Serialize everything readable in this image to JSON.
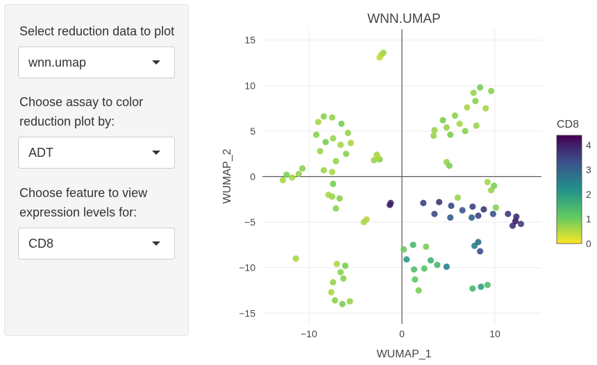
{
  "sidebar": {
    "reduction": {
      "label": "Select reduction data to plot",
      "selected": "wnn.umap"
    },
    "assay": {
      "label": "Choose assay to color reduction plot by:",
      "selected": "ADT"
    },
    "feature": {
      "label": "Choose feature to view expression levels for:",
      "selected": "CD8"
    }
  },
  "chart_data": {
    "type": "scatter",
    "title": "WNN.UMAP",
    "xlabel": "WUMAP_1",
    "ylabel": "WUMAP_2",
    "xlim": [
      -15,
      15
    ],
    "ylim": [
      -16.2,
      16.2
    ],
    "xticks": [
      -10,
      0,
      10
    ],
    "xtick_labels": [
      "−10",
      "0",
      "10"
    ],
    "yticks": [
      15,
      10,
      5,
      0,
      -5,
      -10,
      -15
    ],
    "ytick_labels": [
      "15",
      "10",
      "5",
      "0",
      "−5",
      "−10",
      "−15"
    ],
    "grid": true,
    "colorbar": {
      "title": "CD8",
      "ticks": [
        4,
        3,
        2,
        1,
        0
      ],
      "range": [
        0,
        4.4
      ],
      "colorscale": "viridis",
      "colors": [
        "#fde725",
        "#5ec962",
        "#21918c",
        "#3b528b",
        "#440154"
      ]
    },
    "clusters": [
      {
        "points": [
          [
            -11.8,
            -0.1
          ],
          [
            -12.4,
            0.2
          ],
          [
            -11.1,
            0.3
          ],
          [
            -10.7,
            0.9
          ],
          [
            -12.8,
            -0.4
          ]
        ],
        "cd8": [
          0.6,
          0.9,
          0.7,
          0.8,
          0.6
        ]
      },
      {
        "points": [
          [
            -9,
            6
          ],
          [
            -8.4,
            6.6
          ],
          [
            -7.5,
            6.5
          ],
          [
            -6.5,
            5.8
          ],
          [
            -5.8,
            4.8
          ],
          [
            -5.5,
            3.7
          ],
          [
            -6,
            2.5
          ],
          [
            -7.1,
            1.7
          ],
          [
            -7.5,
            0.5
          ],
          [
            -7.4,
            -0.8
          ],
          [
            -7.5,
            -2.2
          ],
          [
            -7.1,
            -3.5
          ],
          [
            -7.9,
            -2
          ],
          [
            -8.8,
            2.8
          ],
          [
            -9.2,
            4.6
          ],
          [
            -8.2,
            3.8
          ],
          [
            -7.4,
            4.2
          ],
          [
            -6.6,
            3.5
          ],
          [
            -6.7,
            -2.4
          ],
          [
            -8.4,
            0.7
          ]
        ],
        "cd8": [
          0.6,
          0.8,
          0.7,
          0.9,
          0.7,
          0.6,
          0.8,
          0.7,
          0.6,
          0.9,
          0.7,
          0.8,
          0.6,
          0.7,
          0.8,
          0.9,
          0.7,
          0.6,
          0.8,
          0.7
        ]
      },
      {
        "points": [
          [
            -2.7,
            2.4
          ],
          [
            -2.4,
            1.9
          ],
          [
            -3,
            1.8
          ],
          [
            -2.6,
            2.1
          ]
        ],
        "cd8": [
          0.6,
          0.9,
          0.7,
          0.5
        ]
      },
      {
        "points": [
          [
            -2.2,
            13.4
          ],
          [
            -2,
            13.6
          ],
          [
            -2.4,
            13.1
          ]
        ],
        "cd8": [
          0.5,
          0.6,
          0.4
        ]
      },
      {
        "points": [
          [
            3.5,
            5.1
          ],
          [
            4.4,
            6.2
          ],
          [
            5.7,
            6.7
          ],
          [
            7,
            7.6
          ],
          [
            7.7,
            9.2
          ],
          [
            8.4,
            9.8
          ],
          [
            9.6,
            9.4
          ],
          [
            9,
            7.5
          ],
          [
            8,
            5.6
          ],
          [
            6.8,
            5
          ],
          [
            5.2,
            4.6
          ],
          [
            3.4,
            4.5
          ],
          [
            6.2,
            5.8
          ],
          [
            7.9,
            8.3
          ],
          [
            4.8,
            5.4
          ]
        ],
        "cd8": [
          0.7,
          0.9,
          0.8,
          0.6,
          0.7,
          0.9,
          0.8,
          0.6,
          0.7,
          0.8,
          0.9,
          0.7,
          0.6,
          0.8,
          0.7
        ]
      },
      {
        "points": [
          [
            4.8,
            1.6
          ],
          [
            5.1,
            1.2
          ]
        ],
        "cd8": [
          0.7,
          0.9
        ]
      },
      {
        "points": [
          [
            2.3,
            -2.9
          ],
          [
            4,
            -2.8
          ],
          [
            5.3,
            -3.2
          ],
          [
            6.5,
            -3.7
          ],
          [
            7.6,
            -3.3
          ],
          [
            8.8,
            -3.6
          ],
          [
            9.8,
            -4.1
          ],
          [
            3.5,
            -4.1
          ],
          [
            5.2,
            -4.5
          ],
          [
            7.5,
            -4.5
          ],
          [
            8.2,
            -4.3
          ]
        ],
        "cd8": [
          3.5,
          3.7,
          3.4,
          3.2,
          3.5,
          3.6,
          3.3,
          3.4,
          3.1,
          3,
          3.5
        ]
      },
      {
        "points": [
          [
            11.4,
            -4.1
          ],
          [
            12.3,
            -4.4
          ],
          [
            12.8,
            -5.2
          ],
          [
            11.9,
            -5.4
          ],
          [
            12.2,
            -4.9
          ]
        ],
        "cd8": [
          3.6,
          3.8,
          3.5,
          3.7,
          4
        ]
      },
      {
        "points": [
          [
            9.6,
            -1.5
          ],
          [
            9.9,
            -1
          ],
          [
            9.2,
            -0.6
          ]
        ],
        "cd8": [
          0.7,
          0.9,
          0.6
        ]
      },
      {
        "points": [
          [
            0.2,
            -8
          ],
          [
            1.2,
            -7.5
          ],
          [
            2.6,
            -7.7
          ],
          [
            3.1,
            -9.2
          ],
          [
            2.4,
            -10.1
          ],
          [
            1.3,
            -10.2
          ],
          [
            0.5,
            -9.1
          ],
          [
            1.4,
            -11.3
          ],
          [
            1.8,
            -12.5
          ],
          [
            3.8,
            -9.7
          ],
          [
            4.8,
            -9.9
          ]
        ],
        "cd8": [
          1,
          1.4,
          0.9,
          1.6,
          1.2,
          1.3,
          2,
          1.1,
          0.9,
          1.5,
          2.5
        ]
      },
      {
        "points": [
          [
            7.8,
            -7.6
          ],
          [
            8.4,
            -8.2
          ],
          [
            8.2,
            -7.2
          ]
        ],
        "cd8": [
          2.5,
          3.3,
          2.8
        ]
      },
      {
        "points": [
          [
            7.6,
            -12.3
          ],
          [
            8.5,
            -12.1
          ],
          [
            9.2,
            -11.9
          ]
        ],
        "cd8": [
          1.5,
          1.9,
          1.3
        ]
      },
      {
        "points": [
          [
            -7,
            -9.6
          ],
          [
            -6.1,
            -9.8
          ],
          [
            -6.6,
            -10.5
          ],
          [
            -7.4,
            -11.6
          ],
          [
            -7.6,
            -12.7
          ],
          [
            -7.2,
            -13.6
          ],
          [
            -6.4,
            -14
          ],
          [
            -5.6,
            -13.7
          ],
          [
            -6.3,
            -11.2
          ]
        ],
        "cd8": [
          0.6,
          0.9,
          0.8,
          0.7,
          0.6,
          0.8,
          0.9,
          0.7,
          0.8
        ]
      },
      {
        "points": [
          [
            -11.4,
            -9
          ],
          [
            -3.8,
            -4.7
          ],
          [
            -1.2,
            -2.9
          ],
          [
            6,
            -2.3
          ],
          [
            -4.1,
            -5
          ],
          [
            10.1,
            -3.4
          ],
          [
            -1.3,
            -3.1
          ]
        ],
        "cd8": [
          0.6,
          0.5,
          3.8,
          0.7,
          0.6,
          0.8,
          4
        ]
      }
    ]
  }
}
